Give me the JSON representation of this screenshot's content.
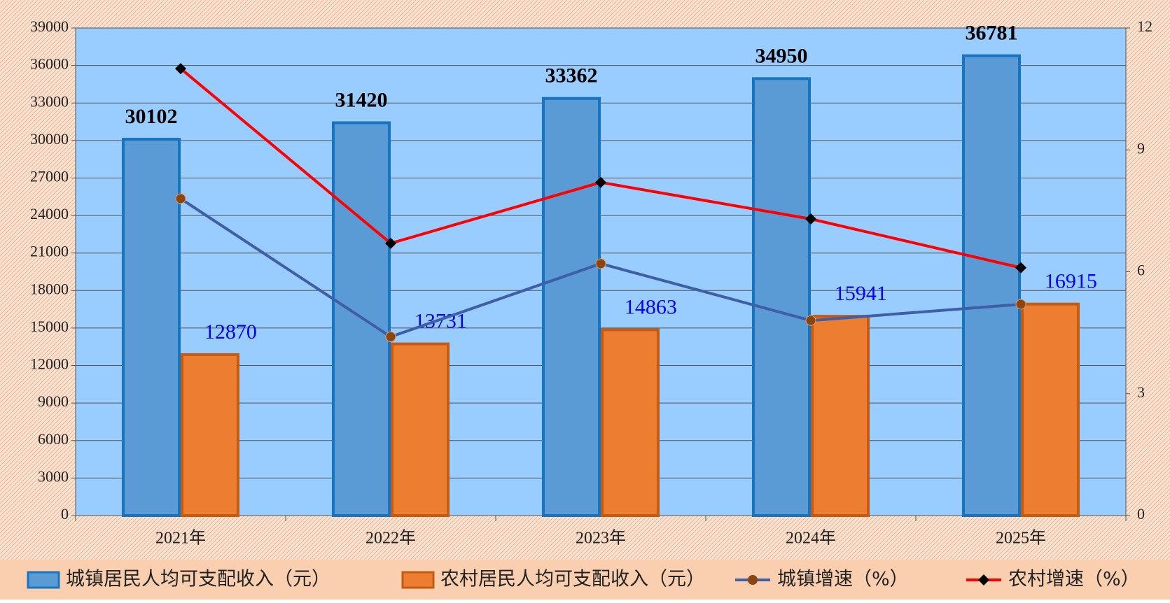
{
  "chart_data": {
    "type": "bar_line",
    "categories": [
      "2021年",
      "2022年",
      "2023年",
      "2024年",
      "2025年"
    ],
    "series": [
      {
        "name": "城镇居民人均可支配收入（元）",
        "type": "bar",
        "color": "#5b9bd5",
        "stroke": "#1874c0",
        "label_color": "#000000",
        "values": [
          30102,
          31420,
          33362,
          34950,
          36781
        ]
      },
      {
        "name": "农村居民人均可支配收入（元）",
        "type": "bar",
        "color": "#ed7d31",
        "stroke": "#c55a11",
        "label_color": "#0000ff",
        "values": [
          12870,
          13731,
          14863,
          15941,
          16915
        ]
      },
      {
        "name": "城镇增速（%）",
        "type": "line",
        "axis": "y2",
        "color": "#3f5ea8",
        "marker_color": "#8b4513",
        "marker": "circle",
        "values": [
          7.8,
          4.4,
          6.2,
          4.8,
          5.2
        ]
      },
      {
        "name": "农村增速（%）",
        "type": "line",
        "axis": "y2",
        "color": "#ff0000",
        "marker_color": "#000000",
        "marker": "diamond",
        "values": [
          11.0,
          6.7,
          8.2,
          7.3,
          6.1
        ]
      }
    ],
    "ylim": [
      0,
      39000
    ],
    "yticks": [
      0,
      3000,
      6000,
      9000,
      12000,
      15000,
      18000,
      21000,
      24000,
      27000,
      30000,
      33000,
      36000,
      39000
    ],
    "y2lim": [
      0,
      12
    ],
    "y2ticks": [
      0,
      3,
      6,
      9,
      12
    ],
    "grid": true,
    "legend": "bottom"
  }
}
